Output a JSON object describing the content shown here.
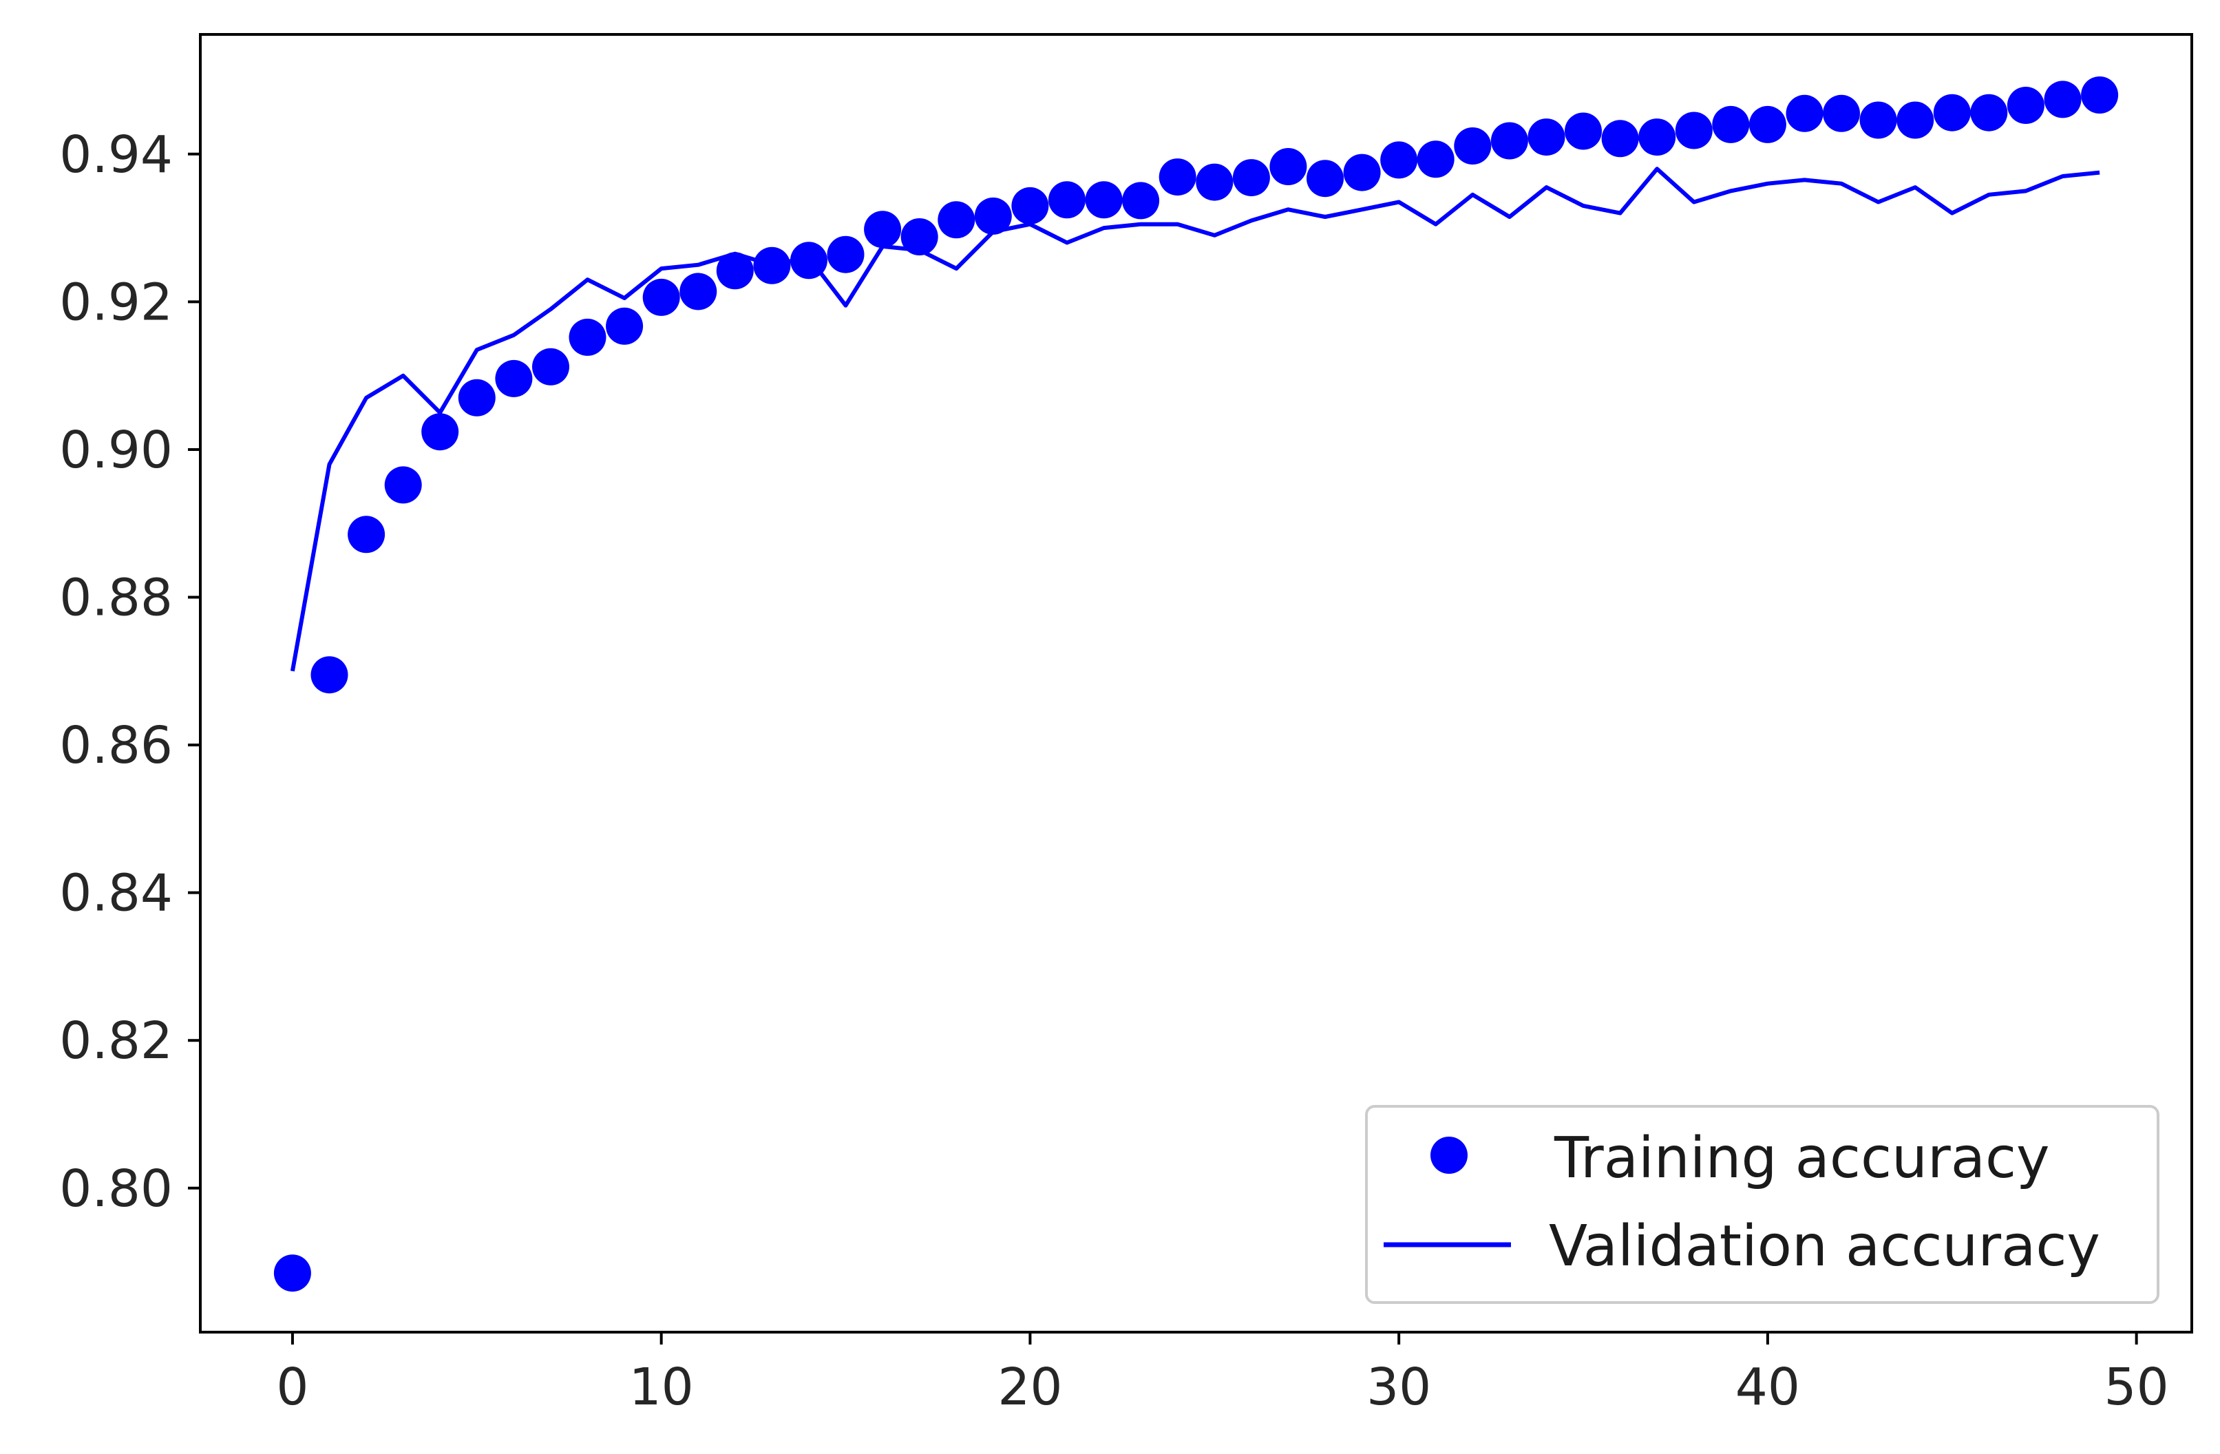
{
  "chart_data": {
    "type": "line",
    "title": "",
    "xlabel": "",
    "ylabel": "",
    "xlim": [
      -2.5,
      51.5
    ],
    "ylim": [
      0.7805,
      0.9562
    ],
    "xticks": [
      0,
      10,
      20,
      30,
      40,
      50
    ],
    "xtick_labels": [
      "0",
      "10",
      "20",
      "30",
      "40",
      "50"
    ],
    "yticks": [
      0.8,
      0.82,
      0.84,
      0.86,
      0.88,
      0.9,
      0.92,
      0.94
    ],
    "ytick_labels": [
      "0.80",
      "0.82",
      "0.84",
      "0.86",
      "0.88",
      "0.90",
      "0.92",
      "0.94"
    ],
    "grid": false,
    "legend_position": "lower-right",
    "color": "#0000ff",
    "x": [
      0,
      1,
      2,
      3,
      4,
      5,
      6,
      7,
      8,
      9,
      10,
      11,
      12,
      13,
      14,
      15,
      16,
      17,
      18,
      19,
      20,
      21,
      22,
      23,
      24,
      25,
      26,
      27,
      28,
      29,
      30,
      31,
      32,
      33,
      34,
      35,
      36,
      37,
      38,
      39,
      40,
      41,
      42,
      43,
      44,
      45,
      46,
      47,
      48,
      49
    ],
    "series": [
      {
        "name": "Training accuracy",
        "style": "markers",
        "values": [
          0.7885,
          0.8695,
          0.8885,
          0.8952,
          0.9024,
          0.907,
          0.9096,
          0.9112,
          0.9152,
          0.9167,
          0.9206,
          0.9214,
          0.9242,
          0.9249,
          0.9256,
          0.9264,
          0.9298,
          0.9288,
          0.9311,
          0.9316,
          0.933,
          0.9338,
          0.9338,
          0.9337,
          0.9369,
          0.9362,
          0.9368,
          0.9383,
          0.9367,
          0.9375,
          0.9392,
          0.9393,
          0.9411,
          0.9418,
          0.9423,
          0.9431,
          0.9421,
          0.9423,
          0.9432,
          0.944,
          0.944,
          0.9455,
          0.9455,
          0.9446,
          0.9446,
          0.9456,
          0.9456,
          0.9466,
          0.9474,
          0.948
        ]
      },
      {
        "name": "Validation accuracy",
        "style": "line",
        "values": [
          0.87,
          0.898,
          0.907,
          0.91,
          0.905,
          0.9135,
          0.9155,
          0.919,
          0.923,
          0.9205,
          0.9245,
          0.925,
          0.9265,
          0.925,
          0.926,
          0.9195,
          0.9275,
          0.927,
          0.9245,
          0.9295,
          0.9305,
          0.928,
          0.93,
          0.9305,
          0.9305,
          0.929,
          0.931,
          0.9325,
          0.9315,
          0.9325,
          0.9335,
          0.9305,
          0.9345,
          0.9315,
          0.9355,
          0.933,
          0.932,
          0.938,
          0.9335,
          0.935,
          0.936,
          0.9365,
          0.936,
          0.9335,
          0.9355,
          0.932,
          0.9345,
          0.935,
          0.937,
          0.9375
        ]
      }
    ]
  }
}
